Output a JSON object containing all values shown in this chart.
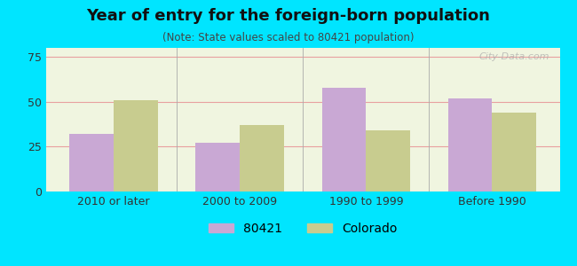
{
  "title": "Year of entry for the foreign-born population",
  "subtitle": "(Note: State values scaled to 80421 population)",
  "categories": [
    "2010 or later",
    "2000 to 2009",
    "1990 to 1999",
    "Before 1990"
  ],
  "values_80421": [
    32,
    27,
    58,
    52
  ],
  "values_colorado": [
    51,
    37,
    34,
    44
  ],
  "color_80421": "#c9a8d4",
  "color_colorado": "#c8cc8f",
  "background_outer": "#00e5ff",
  "background_inner": "#f0f5e0",
  "ylim": [
    0,
    80
  ],
  "yticks": [
    0,
    25,
    50,
    75
  ],
  "bar_width": 0.35,
  "legend_label_1": "80421",
  "legend_label_2": "Colorado",
  "watermark": "City-Data.com"
}
